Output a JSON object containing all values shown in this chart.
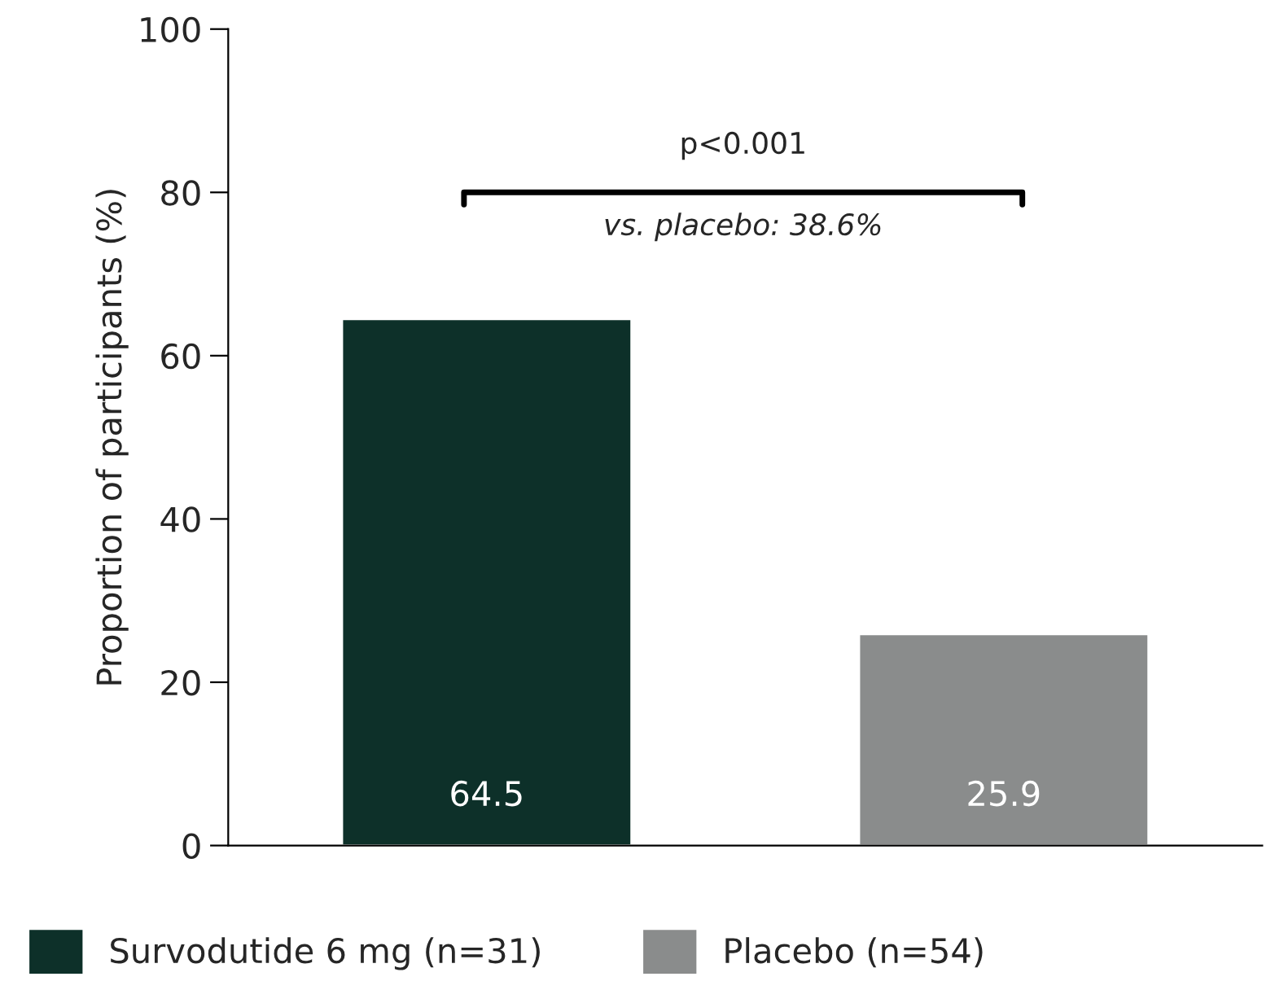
{
  "chart_data": {
    "type": "bar",
    "ylabel": "Proportion of participants (%)",
    "categories": [
      null,
      null
    ],
    "series": [
      {
        "name": "Survodutide 6 mg (n=31)",
        "color": "#0d3029",
        "values": [
          64.5,
          null
        ]
      },
      {
        "name": "Placebo (n=54)",
        "color": "#8a8c8c",
        "values": [
          null,
          25.9
        ]
      }
    ],
    "ylim": [
      0,
      100
    ],
    "yticks": [
      0,
      20,
      40,
      60,
      80,
      100
    ],
    "grid": false,
    "legend": "bottom",
    "data_labels": true,
    "tick_labels": "y",
    "annotations": [
      "p<0.001",
      "vs. placebo: 38.6%"
    ]
  }
}
